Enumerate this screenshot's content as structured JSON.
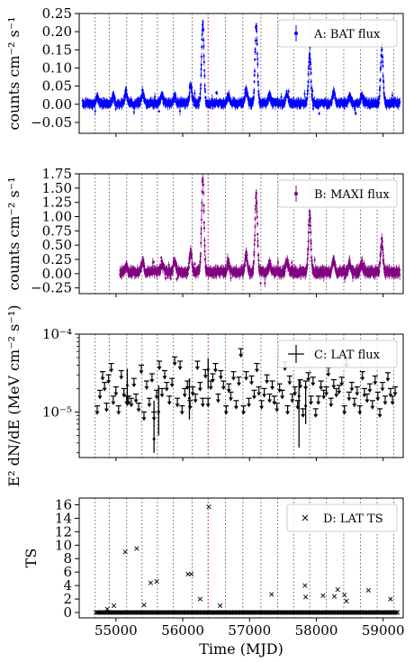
{
  "chart_data": [
    {
      "type": "scatter",
      "panel": "A",
      "ylabel": "counts cm⁻² s⁻¹",
      "xlim": [
        54450,
        59300
      ],
      "ylim": [
        -0.08,
        0.25
      ],
      "yticks": [
        -0.05,
        0.0,
        0.05,
        0.1,
        0.15,
        0.2,
        0.25
      ],
      "ytick_labels": [
        "−0.05",
        "0.00",
        "0.05",
        "0.10",
        "0.15",
        "0.20",
        "0.25"
      ],
      "legend": {
        "label": "A: BAT flux",
        "placement": "top-right"
      },
      "color": "#0000ff",
      "series": [
        {
          "start_mjd": 54500,
          "end_mjd": 59250,
          "baseline": 0.003,
          "noise": 0.008,
          "flares": [
            {
              "t": 54720,
              "amp": 0.015
            },
            {
              "t": 54960,
              "amp": 0.018
            },
            {
              "t": 55150,
              "amp": 0.03
            },
            {
              "t": 55400,
              "amp": 0.03
            },
            {
              "t": 55690,
              "amp": 0.02
            },
            {
              "t": 55880,
              "amp": 0.02
            },
            {
              "t": 56120,
              "amp": 0.05
            },
            {
              "t": 56300,
              "amp": 0.22
            },
            {
              "t": 56680,
              "amp": 0.02
            },
            {
              "t": 56950,
              "amp": 0.04
            },
            {
              "t": 57100,
              "amp": 0.21
            },
            {
              "t": 57300,
              "amp": 0.02
            },
            {
              "t": 57560,
              "amp": 0.03
            },
            {
              "t": 57900,
              "amp": 0.14
            },
            {
              "t": 58260,
              "amp": 0.03
            },
            {
              "t": 58500,
              "amp": 0.02
            },
            {
              "t": 58680,
              "amp": 0.02
            },
            {
              "t": 58980,
              "amp": 0.15
            }
          ]
        }
      ]
    },
    {
      "type": "scatter",
      "panel": "B",
      "ylabel": "counts cm⁻² s⁻¹",
      "xlim": [
        54450,
        59300
      ],
      "ylim": [
        -0.35,
        1.75
      ],
      "yticks": [
        -0.25,
        0.0,
        0.25,
        0.5,
        0.75,
        1.0,
        1.25,
        1.5,
        1.75
      ],
      "ytick_labels": [
        "−0.25",
        "0.00",
        "0.25",
        "0.50",
        "0.75",
        "1.00",
        "1.25",
        "1.50",
        "1.75"
      ],
      "legend": {
        "label": "B: MAXI flux",
        "placement": "top-right"
      },
      "color": "#800080",
      "series": [
        {
          "start_mjd": 55060,
          "end_mjd": 59250,
          "baseline": 0.03,
          "noise": 0.06,
          "flares": [
            {
              "t": 55150,
              "amp": 0.1
            },
            {
              "t": 55400,
              "amp": 0.2
            },
            {
              "t": 55690,
              "amp": 0.15
            },
            {
              "t": 55880,
              "amp": 0.2
            },
            {
              "t": 56120,
              "amp": 0.35
            },
            {
              "t": 56300,
              "amp": 1.65
            },
            {
              "t": 56680,
              "amp": 0.15
            },
            {
              "t": 56950,
              "amp": 0.3
            },
            {
              "t": 57100,
              "amp": 1.35
            },
            {
              "t": 57300,
              "amp": 0.15
            },
            {
              "t": 57560,
              "amp": 0.2
            },
            {
              "t": 57900,
              "amp": 1.05
            },
            {
              "t": 58260,
              "amp": 0.2
            },
            {
              "t": 58500,
              "amp": 0.15
            },
            {
              "t": 58680,
              "amp": 0.15
            },
            {
              "t": 58980,
              "amp": 0.55
            }
          ]
        }
      ]
    },
    {
      "type": "scatter",
      "panel": "C",
      "ylabel": "E² dN/dE (MeV cm⁻² s⁻¹)",
      "yscale": "log",
      "xlim": [
        54450,
        59300
      ],
      "ylim": [
        2.6e-06,
        0.0001
      ],
      "ytick_labels": [
        "10⁻⁵",
        "10⁻⁴"
      ],
      "legend": {
        "label": "C: LAT flux",
        "placement": "top-right"
      },
      "color": "#000000",
      "upper_limits": [
        [
          54720,
          1.2e-05
        ],
        [
          54760,
          1.9e-05
        ],
        [
          54800,
          3.3e-05
        ],
        [
          54830,
          2.4e-05
        ],
        [
          54860,
          1.3e-05
        ],
        [
          54890,
          3e-05
        ],
        [
          54930,
          4.2e-05
        ],
        [
          54960,
          1.6e-05
        ],
        [
          55000,
          2.1e-05
        ],
        [
          55040,
          1.2e-05
        ],
        [
          55080,
          3.4e-05
        ],
        [
          55120,
          2e-05
        ],
        [
          55160,
          1.6e-05
        ],
        [
          55190,
          1.6e-05
        ],
        [
          55230,
          1.5e-05
        ],
        [
          55270,
          2.7e-05
        ],
        [
          55300,
          1.7e-05
        ],
        [
          55340,
          1.3e-05
        ],
        [
          55380,
          4e-05
        ],
        [
          55420,
          1e-05
        ],
        [
          55460,
          2.5e-05
        ],
        [
          55500,
          1.5e-05
        ],
        [
          55540,
          3.1e-05
        ],
        [
          55570,
          1e-05
        ],
        [
          55610,
          1.9e-05
        ],
        [
          55650,
          4.5e-05
        ],
        [
          55690,
          2e-05
        ],
        [
          55730,
          3.4e-05
        ],
        [
          55760,
          2.4e-05
        ],
        [
          55800,
          1.6e-05
        ],
        [
          55840,
          2.7e-05
        ],
        [
          55880,
          5.1e-05
        ],
        [
          55920,
          1.5e-05
        ],
        [
          55960,
          4.5e-05
        ],
        [
          55990,
          1.2e-05
        ],
        [
          56030,
          2e-05
        ],
        [
          56070,
          2.5e-05
        ],
        [
          56110,
          1.4e-05
        ],
        [
          56150,
          2.1e-05
        ],
        [
          56190,
          1.7e-05
        ],
        [
          56220,
          4.5e-05
        ],
        [
          56260,
          2.4e-05
        ],
        [
          56300,
          1.5e-05
        ],
        [
          56340,
          3.5e-05
        ],
        [
          56380,
          1.5e-05
        ],
        [
          56420,
          2.5e-05
        ],
        [
          56450,
          3.1e-05
        ],
        [
          56490,
          4.2e-05
        ],
        [
          56530,
          1.7e-05
        ],
        [
          56570,
          3.4e-05
        ],
        [
          56610,
          2.5e-05
        ],
        [
          56650,
          1.2e-05
        ],
        [
          56690,
          2.3e-05
        ],
        [
          56720,
          1.8e-05
        ],
        [
          56760,
          3.3e-05
        ],
        [
          56800,
          1.4e-05
        ],
        [
          56840,
          2.8e-05
        ],
        [
          56870,
          6.5e-05
        ],
        [
          56910,
          1.2e-05
        ],
        [
          56950,
          3.3e-05
        ],
        [
          56990,
          1.5e-05
        ],
        [
          57030,
          2.9e-05
        ],
        [
          57070,
          1.9e-05
        ],
        [
          57110,
          4.2e-05
        ],
        [
          57140,
          2.1e-05
        ],
        [
          57180,
          1.4e-05
        ],
        [
          57220,
          2e-05
        ],
        [
          57260,
          3e-05
        ],
        [
          57300,
          1.7e-05
        ],
        [
          57340,
          2.5e-05
        ],
        [
          57370,
          1.6e-05
        ],
        [
          57410,
          1.3e-05
        ],
        [
          57450,
          2.3e-05
        ],
        [
          57490,
          1.9e-05
        ],
        [
          57530,
          4.4e-05
        ],
        [
          57570,
          1.2e-05
        ],
        [
          57600,
          2.9e-05
        ],
        [
          57640,
          1.7e-05
        ],
        [
          57680,
          2.1e-05
        ],
        [
          57720,
          1.4e-05
        ],
        [
          57760,
          2.6e-05
        ],
        [
          57800,
          1.1e-05
        ],
        [
          57840,
          2.5e-05
        ],
        [
          57880,
          3.2e-05
        ],
        [
          57920,
          1.6e-05
        ],
        [
          57950,
          2.8e-05
        ],
        [
          57990,
          1.1e-05
        ],
        [
          58030,
          1.6e-05
        ],
        [
          58070,
          2.5e-05
        ],
        [
          58110,
          1.9e-05
        ],
        [
          58150,
          2.1e-05
        ],
        [
          58180,
          3.7e-05
        ],
        [
          58220,
          1.5e-05
        ],
        [
          58260,
          2.6e-05
        ],
        [
          58300,
          2e-05
        ],
        [
          58340,
          2.2e-05
        ],
        [
          58380,
          2.8e-05
        ],
        [
          58420,
          1.2e-05
        ],
        [
          58450,
          4.8e-05
        ],
        [
          58490,
          1.8e-05
        ],
        [
          58530,
          2.4e-05
        ],
        [
          58570,
          1.5e-05
        ],
        [
          58610,
          2.1e-05
        ],
        [
          58650,
          1.2e-05
        ],
        [
          58690,
          3.3e-05
        ],
        [
          58720,
          2e-05
        ],
        [
          58760,
          1.7e-05
        ],
        [
          58800,
          2.3e-05
        ],
        [
          58840,
          1.4e-05
        ],
        [
          58880,
          2.9e-05
        ],
        [
          58920,
          1.8e-05
        ],
        [
          58950,
          1.1e-05
        ],
        [
          58990,
          2.4e-05
        ],
        [
          59030,
          1.6e-05
        ],
        [
          59070,
          3.2e-05
        ],
        [
          59110,
          2e-05
        ],
        [
          59140,
          1.6e-05
        ],
        [
          59180,
          2.1e-05
        ]
      ],
      "detections": [
        [
          55170,
          2.2e-05,
          1.2e-05,
          3.6e-05
        ],
        [
          55570,
          4.5e-06,
          3e-06,
          1.4e-05
        ],
        [
          55640,
          1e-05,
          5e-06,
          2.2e-05
        ],
        [
          56100,
          1.5e-05,
          8e-06,
          2.7e-05
        ],
        [
          56380,
          3.5e-05,
          2e-05,
          4.9e-05
        ],
        [
          57740,
          1.6e-05,
          3.5e-06,
          2.6e-05
        ],
        [
          57840,
          1.2e-05,
          7e-06,
          2.2e-05
        ]
      ]
    },
    {
      "type": "scatter",
      "panel": "D",
      "xlabel": "Time (MJD)",
      "ylabel": "TS",
      "xlim": [
        54450,
        59300
      ],
      "ylim": [
        -0.8,
        17
      ],
      "yticks": [
        0,
        2,
        4,
        6,
        8,
        10,
        12,
        14,
        16
      ],
      "xticks": [
        55000,
        56000,
        57000,
        58000,
        59000
      ],
      "legend": {
        "label": "D: LAT TS",
        "placement": "top-right"
      },
      "marker": "x",
      "color": "#000000",
      "points": [
        [
          54870,
          0.5
        ],
        [
          54970,
          1.0
        ],
        [
          55140,
          9.0
        ],
        [
          55310,
          9.5
        ],
        [
          55420,
          1.1
        ],
        [
          55520,
          4.4
        ],
        [
          55610,
          4.6
        ],
        [
          56080,
          5.7
        ],
        [
          56130,
          5.7
        ],
        [
          56260,
          2.0
        ],
        [
          56390,
          15.7
        ],
        [
          56560,
          1.0
        ],
        [
          57330,
          2.7
        ],
        [
          57830,
          4.0
        ],
        [
          57840,
          2.3
        ],
        [
          58100,
          2.5
        ],
        [
          58270,
          2.4
        ],
        [
          58320,
          3.4
        ],
        [
          58420,
          2.6
        ],
        [
          58450,
          1.7
        ],
        [
          58780,
          3.3
        ],
        [
          59110,
          2.0
        ]
      ],
      "baseline_start": 54700,
      "baseline_end": 59220,
      "baseline_step": 21
    }
  ],
  "vertical_lines_mjd": [
    54690,
    54900,
    55160,
    55390,
    55620,
    55860,
    56140,
    56380,
    56640,
    56900,
    57170,
    57420,
    57660,
    57900,
    58150,
    58410,
    58660,
    58910,
    59160
  ],
  "red_line_mjd": 56380
}
